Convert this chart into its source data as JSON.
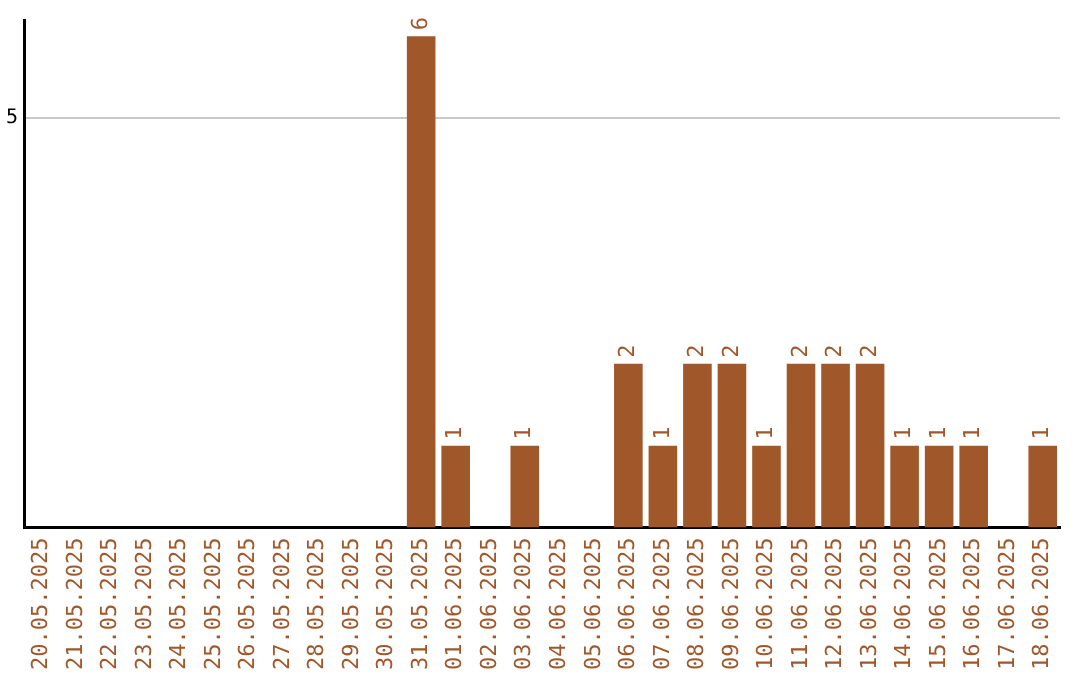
{
  "chart_data": {
    "type": "bar",
    "categories": [
      "20.05.2025",
      "21.05.2025",
      "22.05.2025",
      "23.05.2025",
      "24.05.2025",
      "25.05.2025",
      "26.05.2025",
      "27.05.2025",
      "28.05.2025",
      "29.05.2025",
      "30.05.2025",
      "31.05.2025",
      "01.06.2025",
      "02.06.2025",
      "03.06.2025",
      "04.06.2025",
      "05.06.2025",
      "06.06.2025",
      "07.06.2025",
      "08.06.2025",
      "09.06.2025",
      "10.06.2025",
      "11.06.2025",
      "12.06.2025",
      "13.06.2025",
      "14.06.2025",
      "15.06.2025",
      "16.06.2025",
      "17.06.2025",
      "18.06.2025"
    ],
    "values": [
      0,
      0,
      0,
      0,
      0,
      0,
      0,
      0,
      0,
      0,
      0,
      6,
      1,
      0,
      1,
      0,
      0,
      2,
      1,
      2,
      2,
      1,
      2,
      2,
      2,
      1,
      1,
      1,
      0,
      1
    ],
    "value_labels": [
      null,
      null,
      null,
      null,
      null,
      null,
      null,
      null,
      null,
      null,
      null,
      "6",
      "1",
      null,
      "1",
      null,
      null,
      "2",
      "1",
      "2",
      "2",
      "1",
      "2",
      "2",
      "2",
      "1",
      "1",
      "1",
      null,
      "1"
    ],
    "color": "#a0572a",
    "ylim": [
      0,
      6.2
    ],
    "yticks": [
      5
    ],
    "grid": "y",
    "legend": false
  }
}
